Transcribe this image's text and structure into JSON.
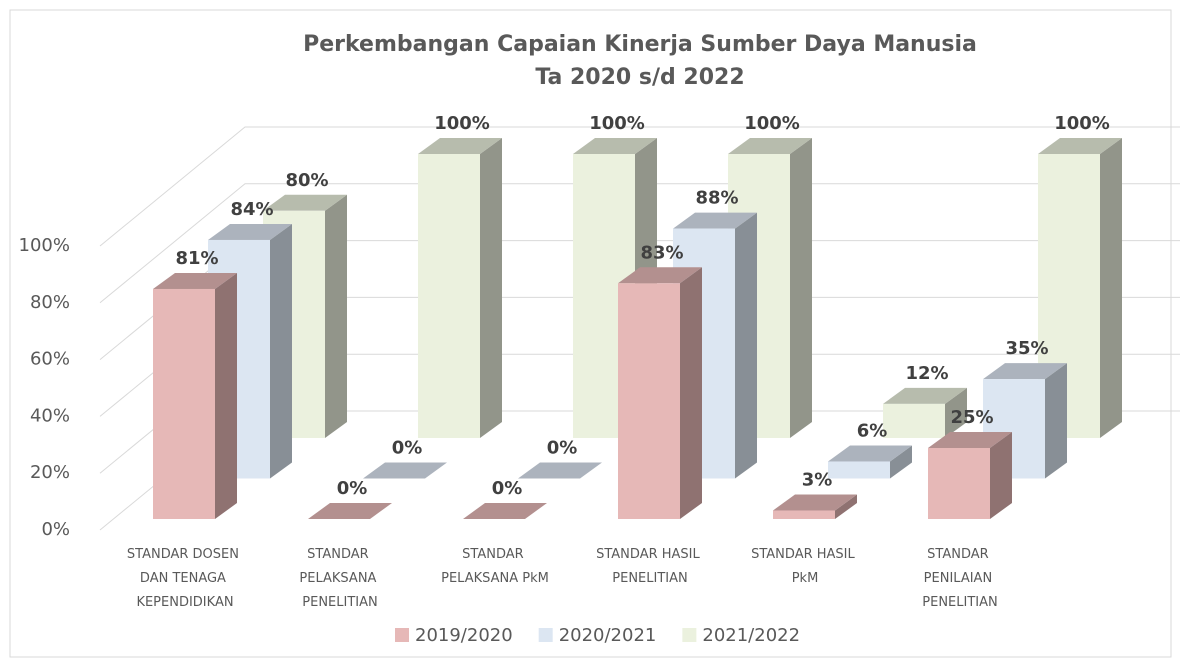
{
  "chart_data": {
    "type": "bar3d",
    "title": "Perkembangan Capaian Kinerja Sumber Daya Manusia",
    "subtitle": "Ta 2020 s/d 2022",
    "categories": [
      "STANDAR DOSEN DAN TENAGA KEPENDIDIKAN",
      "STANDAR PELAKSANA PENELITIAN",
      "STANDAR PELAKSANA PkM",
      "STANDAR HASIL PENELITIAN",
      "STANDAR HASIL PkM",
      "STANDAR PENILAIAN PENELITIAN"
    ],
    "series": [
      {
        "name": "2019/2020",
        "color": "#e6b8b7",
        "values": [
          81,
          0,
          0,
          83,
          3,
          25
        ],
        "value_labels": [
          "81%",
          "0%",
          "0%",
          "83%",
          "3%",
          "25%"
        ]
      },
      {
        "name": "2020/2021",
        "color": "#dce6f2",
        "values": [
          84,
          0,
          0,
          88,
          6,
          35
        ],
        "value_labels": [
          "84%",
          "0%",
          "0%",
          "88%",
          "6%",
          "35%"
        ]
      },
      {
        "name": "2021/2022",
        "color": "#ebf1de",
        "values": [
          80,
          100,
          100,
          100,
          12,
          100
        ],
        "value_labels": [
          "80%",
          "100%",
          "100%",
          "100%",
          "12%",
          "100%"
        ]
      }
    ],
    "ylim": [
      0,
      100
    ],
    "yticks": [
      {
        "value": 0,
        "label": "0%"
      },
      {
        "value": 20,
        "label": "20%"
      },
      {
        "value": 40,
        "label": "40%"
      },
      {
        "value": 60,
        "label": "60%"
      },
      {
        "value": 80,
        "label": "80%"
      },
      {
        "value": 100,
        "label": "100%"
      }
    ],
    "grid": true,
    "legend": "bottom"
  }
}
